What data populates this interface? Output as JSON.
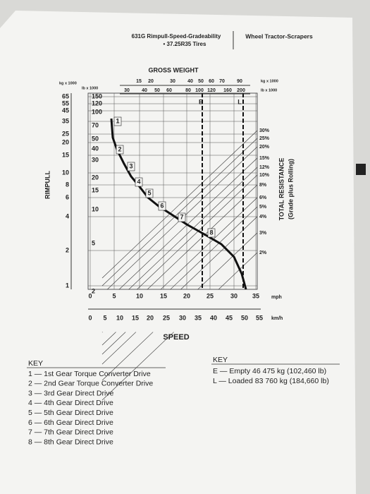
{
  "header": {
    "title": "631G Rimpull-Speed-Gradeability",
    "subtitle": "• 37.25R35 Tires",
    "section": "Wheel Tractor-Scrapers"
  },
  "chart": {
    "gross_weight_title": "GROSS WEIGHT",
    "weight_kg": [
      15,
      20,
      30,
      40,
      50,
      60,
      70,
      90
    ],
    "weight_kg_unit": "kg x 1000",
    "weight_lb": [
      30,
      40,
      50,
      60,
      80,
      100,
      120,
      160,
      200
    ],
    "weight_lb_unit": "lb x 1000",
    "weight_markers": [
      "E",
      "L"
    ],
    "rimpull_label": "RIMPULL",
    "rimpull_kg_unit": "kg x 1000",
    "rimpull_lb_unit": "lb x 1000",
    "rimpull_kg": [
      65,
      55,
      45,
      35,
      25,
      20,
      15,
      10,
      8,
      6,
      4,
      2,
      1
    ],
    "rimpull_lb": [
      150,
      120,
      100,
      70,
      50,
      40,
      30,
      20,
      15,
      10,
      5,
      2
    ],
    "resistance": [
      "30%",
      "25%",
      "20%",
      "15%",
      "12%",
      "10%",
      "8%",
      "6%",
      "5%",
      "4%",
      "3%",
      "2%"
    ],
    "resistance_label": "TOTAL RESISTANCE",
    "resistance_sublabel": "(Grade plus Rolling)",
    "speed_mph": [
      0,
      5,
      10,
      15,
      20,
      25,
      30,
      35
    ],
    "speed_mph_unit": "mph",
    "speed_kmh": [
      0,
      5,
      10,
      15,
      20,
      25,
      30,
      35,
      40,
      45,
      50,
      55
    ],
    "speed_kmh_unit": "km/h",
    "speed_label": "SPEED",
    "gears": [
      1,
      2,
      3,
      4,
      5,
      6,
      7,
      8
    ]
  },
  "key_left": {
    "title": "KEY",
    "items": [
      "1 — 1st Gear Torque Converter Drive",
      "2 — 2nd Gear Torque Converter Drive",
      "3 — 3rd Gear Direct Drive",
      "4 — 4th Gear Direct Drive",
      "5 — 5th Gear Direct Drive",
      "6 — 6th Gear Direct Drive",
      "7 — 7th Gear Direct Drive",
      "8 — 8th Gear Direct Drive"
    ]
  },
  "key_right": {
    "title": "KEY",
    "items": [
      "E — Empty 46 475 kg (102,460 lb)",
      "L — Loaded 83 760 kg (184,660 lb)"
    ]
  }
}
